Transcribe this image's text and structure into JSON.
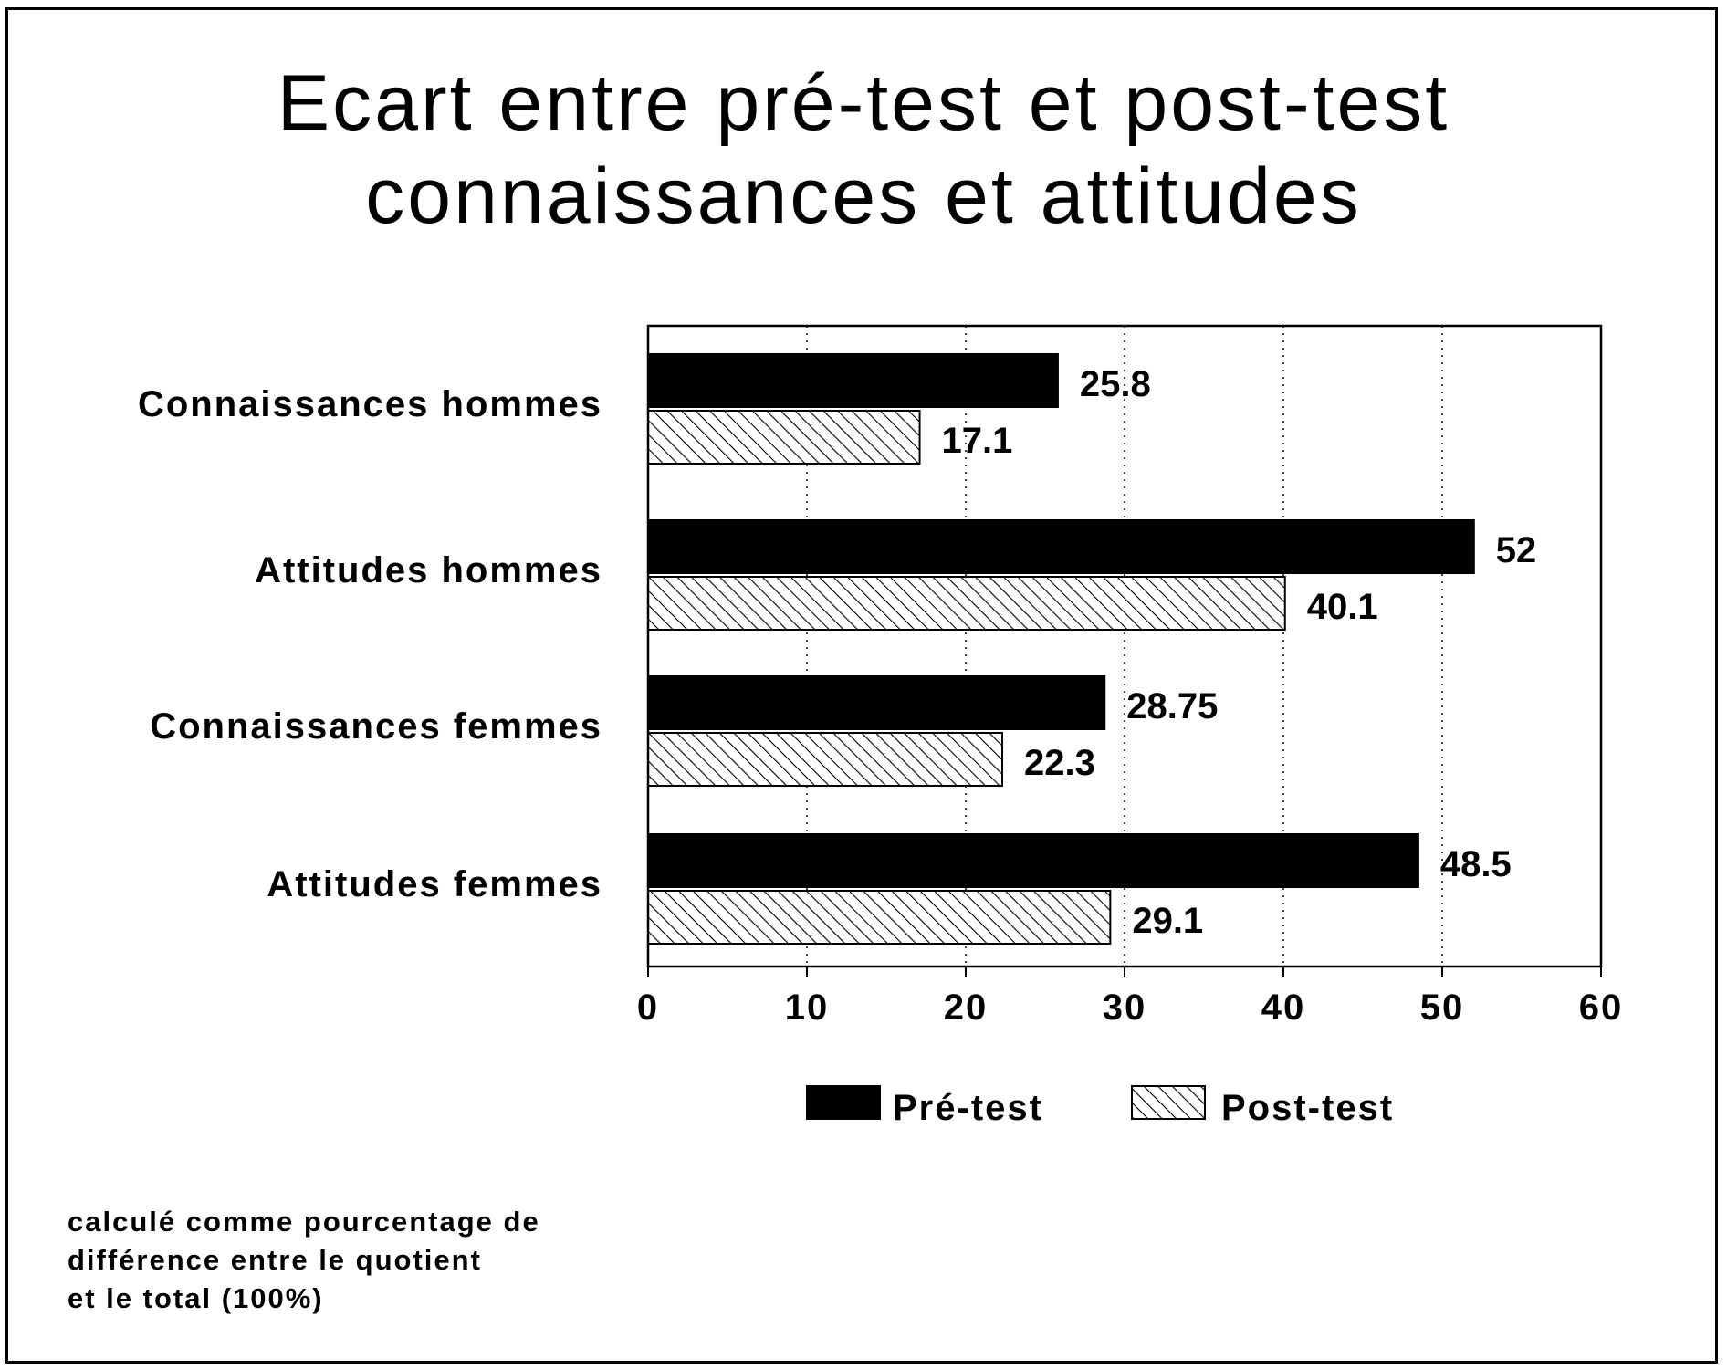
{
  "title": {
    "line1": "Ecart entre pré-test et post-test",
    "line2": "connaissances et attitudes"
  },
  "footnote": {
    "line1": "calculé comme pourcentage de",
    "line2": "différence entre le quotient",
    "line3": "et le total (100%)"
  },
  "colors": {
    "pre_test": "#000000",
    "post_test_hatch": "#000000",
    "background": "#ffffff"
  },
  "chart_data": {
    "type": "bar",
    "orientation": "horizontal",
    "categories": [
      "Connaissances hommes",
      "Attitudes hommes",
      "Connaissances femmes",
      "Attitudes femmes"
    ],
    "series": [
      {
        "name": "Pré-test",
        "values": [
          25.8,
          52,
          28.75,
          48.5
        ],
        "labels": [
          "25.8",
          "52",
          "28.75",
          "48.5"
        ],
        "pattern": "solid"
      },
      {
        "name": "Post-test",
        "values": [
          17.1,
          40.1,
          22.3,
          29.1
        ],
        "labels": [
          "17.1",
          "40.1",
          "22.3",
          "29.1"
        ],
        "pattern": "hatched"
      }
    ],
    "xlim": [
      0,
      60
    ],
    "xticks": [
      0,
      10,
      20,
      30,
      40,
      50,
      60
    ],
    "xtick_labels": [
      "0",
      "10",
      "20",
      "30",
      "40",
      "50",
      "60"
    ],
    "grid": "vertical dotted",
    "legend_position": "bottom",
    "data_labels": true
  }
}
